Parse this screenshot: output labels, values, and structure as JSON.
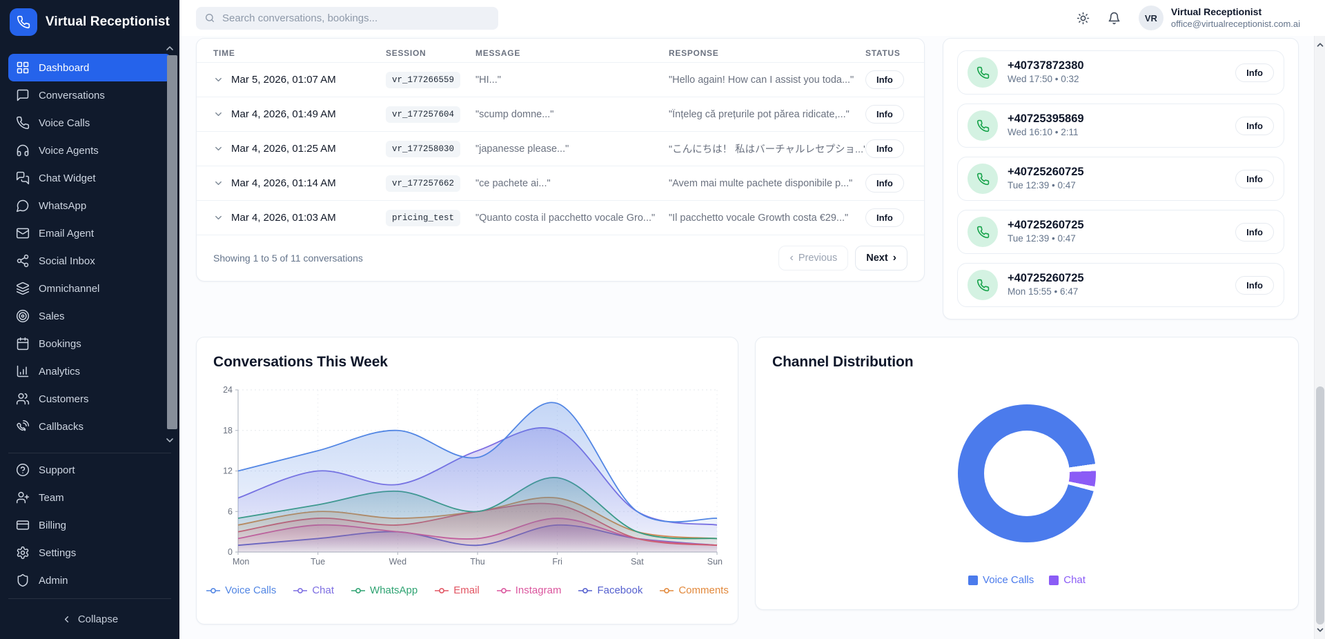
{
  "app": {
    "brand": "Virtual Receptionist"
  },
  "topbar": {
    "search_placeholder": "Search conversations, bookings...",
    "avatar_initials": "VR",
    "user_name": "Virtual Receptionist",
    "user_email": "office@virtualreceptionist.com.ai"
  },
  "sidebar": {
    "items": [
      {
        "label": "Dashboard",
        "icon": "dashboard",
        "active": true
      },
      {
        "label": "Conversations",
        "icon": "conversations"
      },
      {
        "label": "Voice Calls",
        "icon": "voice-calls"
      },
      {
        "label": "Voice Agents",
        "icon": "voice-agents"
      },
      {
        "label": "Chat Widget",
        "icon": "chat-widget"
      },
      {
        "label": "WhatsApp",
        "icon": "whatsapp"
      },
      {
        "label": "Email Agent",
        "icon": "email-agent"
      },
      {
        "label": "Social Inbox",
        "icon": "social-inbox"
      },
      {
        "label": "Omnichannel",
        "icon": "omnichannel"
      },
      {
        "label": "Sales",
        "icon": "sales"
      },
      {
        "label": "Bookings",
        "icon": "bookings"
      },
      {
        "label": "Analytics",
        "icon": "analytics"
      },
      {
        "label": "Customers",
        "icon": "customers"
      },
      {
        "label": "Callbacks",
        "icon": "callbacks"
      }
    ],
    "secondary_items": [
      {
        "label": "Support",
        "icon": "support"
      },
      {
        "label": "Team",
        "icon": "team"
      },
      {
        "label": "Billing",
        "icon": "billing"
      },
      {
        "label": "Settings",
        "icon": "settings"
      },
      {
        "label": "Admin",
        "icon": "admin"
      }
    ],
    "collapse_label": "Collapse"
  },
  "conversations_table": {
    "columns": [
      "TIME",
      "SESSION",
      "MESSAGE",
      "RESPONSE",
      "STATUS"
    ],
    "rows": [
      {
        "time": "Mar 5, 2026, 01:07 AM",
        "session": "vr_177266559",
        "message": "\"HI...\"",
        "response": "\"Hello again! How can I assist you toda...\"",
        "status": "Info"
      },
      {
        "time": "Mar 4, 2026, 01:49 AM",
        "session": "vr_177257604",
        "message": "\"scump domne...\"",
        "response": "\"Înțeleg că prețurile pot părea ridicate,...\"",
        "status": "Info"
      },
      {
        "time": "Mar 4, 2026, 01:25 AM",
        "session": "vr_177258030",
        "message": "\"japanesse please...\"",
        "response": "\"こんにちは！ 私はバーチャルレセプショ...\"",
        "status": "Info"
      },
      {
        "time": "Mar 4, 2026, 01:14 AM",
        "session": "vr_177257662",
        "message": "\"ce pachete ai...\"",
        "response": "\"Avem mai multe pachete disponibile p...\"",
        "status": "Info"
      },
      {
        "time": "Mar 4, 2026, 01:03 AM",
        "session": "pricing_test",
        "message": "\"Quanto costa il pacchetto vocale Gro...\"",
        "response": "\"Il pacchetto vocale Growth costa €29...\"",
        "status": "Info"
      }
    ],
    "footer": {
      "summary": "Showing 1 to 5 of 11 conversations",
      "prev_label": "Previous",
      "next_label": "Next"
    }
  },
  "calls_panel": {
    "items": [
      {
        "number": "+40737872380",
        "meta": "Wed 17:50 • 0:32",
        "action": "Info"
      },
      {
        "number": "+40725395869",
        "meta": "Wed 16:10 • 2:11",
        "action": "Info"
      },
      {
        "number": "+40725260725",
        "meta": "Tue 12:39 • 0:47",
        "action": "Info"
      },
      {
        "number": "+40725260725",
        "meta": "Tue 12:39 • 0:47",
        "action": "Info"
      },
      {
        "number": "+40725260725",
        "meta": "Mon 15:55 • 6:47",
        "action": "Info"
      }
    ]
  },
  "chart_data": [
    {
      "type": "area",
      "title": "Conversations This Week",
      "x": [
        "Mon",
        "Tue",
        "Wed",
        "Thu",
        "Fri",
        "Sat",
        "Sun"
      ],
      "ylim": [
        0,
        24
      ],
      "yticks": [
        0,
        6,
        12,
        18,
        24
      ],
      "grid": true,
      "legend_position": "bottom",
      "series": [
        {
          "name": "Voice Calls",
          "color": "#5286e4",
          "values": [
            12,
            15,
            18,
            14,
            22,
            6,
            5
          ]
        },
        {
          "name": "Chat",
          "color": "#7d6ee2",
          "values": [
            8,
            12,
            10,
            15,
            18,
            6,
            4
          ]
        },
        {
          "name": "WhatsApp",
          "color": "#2fa372",
          "values": [
            5,
            7,
            9,
            6,
            11,
            3,
            2
          ]
        },
        {
          "name": "Email",
          "color": "#e25563",
          "values": [
            3,
            5,
            4,
            6,
            7,
            2,
            1
          ]
        },
        {
          "name": "Instagram",
          "color": "#db569e",
          "values": [
            2,
            4,
            3,
            2,
            5,
            2,
            1
          ]
        },
        {
          "name": "Facebook",
          "color": "#5560cf",
          "values": [
            1,
            2,
            3,
            1,
            4,
            2,
            1
          ]
        },
        {
          "name": "Comments",
          "color": "#e2893c",
          "values": [
            4,
            6,
            5,
            6,
            8,
            3,
            2
          ]
        }
      ]
    },
    {
      "type": "pie",
      "donut": true,
      "title": "Channel Distribution",
      "labels": [
        "Voice Calls",
        "Chat"
      ],
      "values": [
        96.4,
        3.6
      ],
      "colors": [
        "#4b7bec",
        "#8b5cf6"
      ],
      "legend_position": "bottom"
    }
  ]
}
